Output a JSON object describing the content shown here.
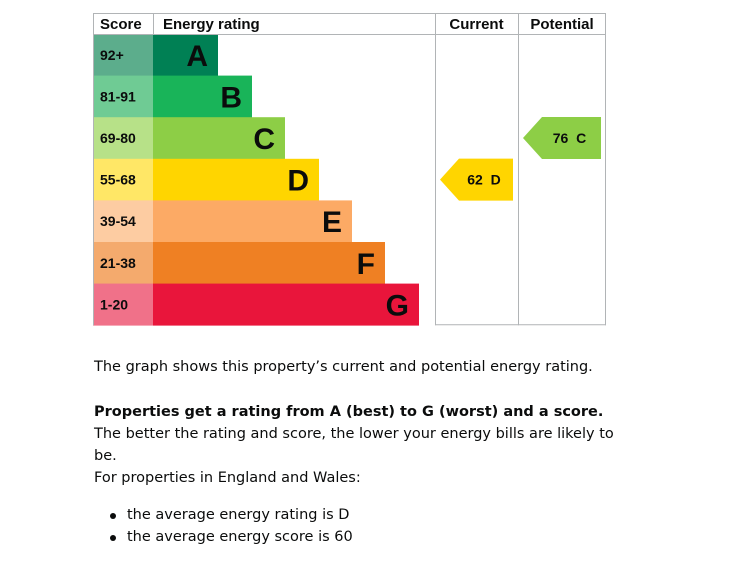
{
  "chart_data": {
    "type": "bar",
    "headers": {
      "score": "Score",
      "rating": "Energy rating",
      "current": "Current",
      "potential": "Potential"
    },
    "bands": [
      {
        "letter": "A",
        "range": "92+",
        "color": "#008054",
        "score_color": "#5cad8c"
      },
      {
        "letter": "B",
        "range": "81-91",
        "color": "#19b459",
        "score_color": "#6fcb94"
      },
      {
        "letter": "C",
        "range": "69-80",
        "color": "#8dce46",
        "score_color": "#b7e188"
      },
      {
        "letter": "D",
        "range": "55-68",
        "color": "#ffd500",
        "score_color": "#ffe766"
      },
      {
        "letter": "E",
        "range": "39-54",
        "color": "#fcaa65",
        "score_color": "#fdcca2"
      },
      {
        "letter": "F",
        "range": "21-38",
        "color": "#ef8023",
        "score_color": "#f4aa6d"
      },
      {
        "letter": "G",
        "range": "1-20",
        "color": "#e9153b",
        "score_color": "#f07189"
      }
    ],
    "current": {
      "score": 62,
      "band": "D",
      "label": "62  D",
      "color": "#ffd500"
    },
    "potential": {
      "score": 76,
      "band": "C",
      "label": "76  C",
      "color": "#8dce46"
    }
  },
  "text": {
    "p1": "The graph shows this property’s current and potential energy rating.",
    "p2_bold": "Properties get a rating from A (best) to G (worst) and a score.",
    "p2_rest": " The better the rating and score, the lower your energy bills are likely to be.",
    "p3": "For properties in England and Wales:",
    "bullets": [
      "the average energy rating is D",
      "the average energy score is 60"
    ]
  }
}
